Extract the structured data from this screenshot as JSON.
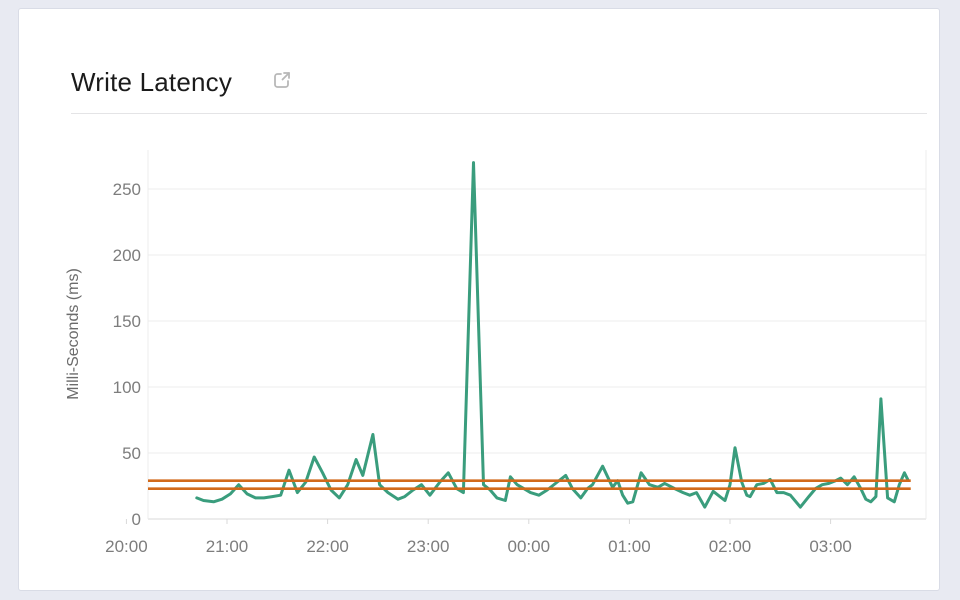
{
  "header": {
    "title": "Write Latency",
    "external_link_icon": "open-in-new-window"
  },
  "colors": {
    "page_background": "#e8eaf2",
    "card_background": "#ffffff",
    "card_border": "#d9dce6",
    "title_text": "#1b1b1b",
    "tick_text": "#7d7d7d",
    "axis_label_text": "#6b6b6b",
    "gridline": "#ececec",
    "axis_line": "#d8d8d8",
    "series_green": "#3a9d7d",
    "reference_orange": "#d2691a",
    "icon_gray": "#b8b8b8"
  },
  "chart_data": {
    "type": "line",
    "title": "Write Latency",
    "xlabel": "",
    "ylabel": "Milli-Seconds (ms)",
    "x_unit": "minutes_after_20:00",
    "x_ticks": [
      {
        "label": "20:00",
        "min": 0
      },
      {
        "label": "21:00",
        "min": 60
      },
      {
        "label": "22:00",
        "min": 120
      },
      {
        "label": "23:00",
        "min": 180
      },
      {
        "label": "00:00",
        "min": 240
      },
      {
        "label": "01:00",
        "min": 300
      },
      {
        "label": "02:00",
        "min": 360
      },
      {
        "label": "03:00",
        "min": 420
      }
    ],
    "y_ticks": [
      0,
      50,
      100,
      150,
      200,
      250
    ],
    "ylim": [
      0,
      280
    ],
    "xlim_minutes": [
      13,
      477
    ],
    "grid": "horizontal",
    "legend": "none",
    "reference_lines": [
      {
        "name": "upper-threshold",
        "value": 29,
        "color": "#d2691a"
      },
      {
        "name": "lower-threshold",
        "value": 23,
        "color": "#d2691a"
      }
    ],
    "series": [
      {
        "name": "write-latency-ms",
        "color": "#3a9d7d",
        "points": [
          [
            42,
            16
          ],
          [
            46,
            14
          ],
          [
            52,
            13
          ],
          [
            57,
            15
          ],
          [
            62,
            19
          ],
          [
            67,
            26
          ],
          [
            72,
            19
          ],
          [
            77,
            16
          ],
          [
            82,
            16
          ],
          [
            87,
            17
          ],
          [
            92,
            18
          ],
          [
            97,
            37
          ],
          [
            102,
            20
          ],
          [
            107,
            28
          ],
          [
            112,
            47
          ],
          [
            117,
            35
          ],
          [
            122,
            22
          ],
          [
            127,
            16
          ],
          [
            132,
            26
          ],
          [
            137,
            45
          ],
          [
            141,
            33
          ],
          [
            147,
            64
          ],
          [
            151,
            26
          ],
          [
            156,
            20
          ],
          [
            162,
            15
          ],
          [
            166,
            17
          ],
          [
            171,
            22
          ],
          [
            176,
            26
          ],
          [
            181,
            18
          ],
          [
            187,
            28
          ],
          [
            192,
            35
          ],
          [
            197,
            23
          ],
          [
            201,
            20
          ],
          [
            207,
            270
          ],
          [
            213,
            26
          ],
          [
            217,
            22
          ],
          [
            221,
            16
          ],
          [
            226,
            14
          ],
          [
            229,
            32
          ],
          [
            233,
            26
          ],
          [
            237,
            23
          ],
          [
            241,
            20
          ],
          [
            246,
            18
          ],
          [
            251,
            22
          ],
          [
            257,
            28
          ],
          [
            262,
            33
          ],
          [
            266,
            23
          ],
          [
            271,
            16
          ],
          [
            275,
            23
          ],
          [
            278,
            26
          ],
          [
            284,
            40
          ],
          [
            290,
            24
          ],
          [
            293,
            29
          ],
          [
            296,
            18
          ],
          [
            299,
            12
          ],
          [
            302,
            13
          ],
          [
            307,
            35
          ],
          [
            312,
            26
          ],
          [
            317,
            24
          ],
          [
            321,
            27
          ],
          [
            327,
            23
          ],
          [
            332,
            20
          ],
          [
            336,
            18
          ],
          [
            340,
            20
          ],
          [
            345,
            9
          ],
          [
            350,
            21
          ],
          [
            355,
            16
          ],
          [
            357,
            14
          ],
          [
            360,
            26
          ],
          [
            363,
            54
          ],
          [
            367,
            28
          ],
          [
            370,
            18
          ],
          [
            372,
            17
          ],
          [
            376,
            26
          ],
          [
            380,
            27
          ],
          [
            384,
            30
          ],
          [
            388,
            20
          ],
          [
            392,
            20
          ],
          [
            396,
            18
          ],
          [
            402,
            9
          ],
          [
            407,
            17
          ],
          [
            411,
            23
          ],
          [
            415,
            26
          ],
          [
            419,
            27
          ],
          [
            423,
            29
          ],
          [
            426,
            31
          ],
          [
            430,
            26
          ],
          [
            434,
            32
          ],
          [
            438,
            23
          ],
          [
            441,
            15
          ],
          [
            444,
            13
          ],
          [
            447,
            17
          ],
          [
            450,
            91
          ],
          [
            454,
            16
          ],
          [
            458,
            13
          ],
          [
            461,
            26
          ],
          [
            464,
            35
          ],
          [
            466,
            30
          ]
        ]
      }
    ]
  }
}
